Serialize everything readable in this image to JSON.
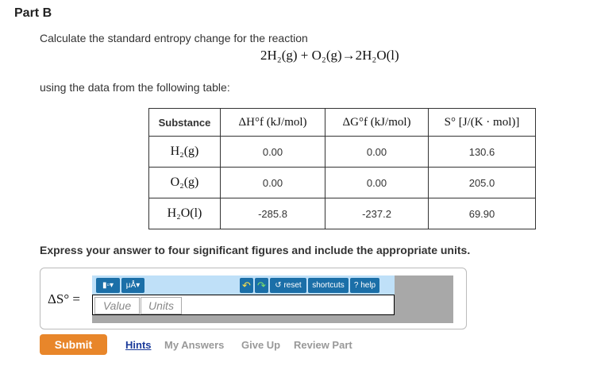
{
  "part_title": "Part B",
  "question_line1": "Calculate the standard entropy change for the reaction",
  "reaction": "2H₂(g) + O₂(g)→2H₂O(l)",
  "question_line2": "using the data from the following table:",
  "table": {
    "headers": [
      "Substance",
      "ΔH°f (kJ/mol)",
      "ΔG°f (kJ/mol)",
      "S° [J/(K · mol)]"
    ],
    "rows": [
      [
        "H₂(g)",
        "0.00",
        "0.00",
        "130.6"
      ],
      [
        "O₂(g)",
        "0.00",
        "0.00",
        "205.0"
      ],
      [
        "H₂O(l)",
        "-285.8",
        "-237.2",
        "69.90"
      ]
    ]
  },
  "instruction": "Express your answer to four significant figures and include the appropriate units.",
  "answer": {
    "label": "ΔS° =",
    "value_placeholder": "Value",
    "units_placeholder": "Units",
    "toolbar": {
      "templates": "▮▫▾",
      "units": "μÅ▾",
      "undo": "↶",
      "redo": "↷",
      "reset": "↺ reset",
      "shortcuts": "shortcuts",
      "help": "? help"
    }
  },
  "actions": {
    "submit": "Submit",
    "hints": "Hints",
    "my_answers": "My Answers",
    "give_up": "Give Up",
    "review_part": "Review Part"
  }
}
